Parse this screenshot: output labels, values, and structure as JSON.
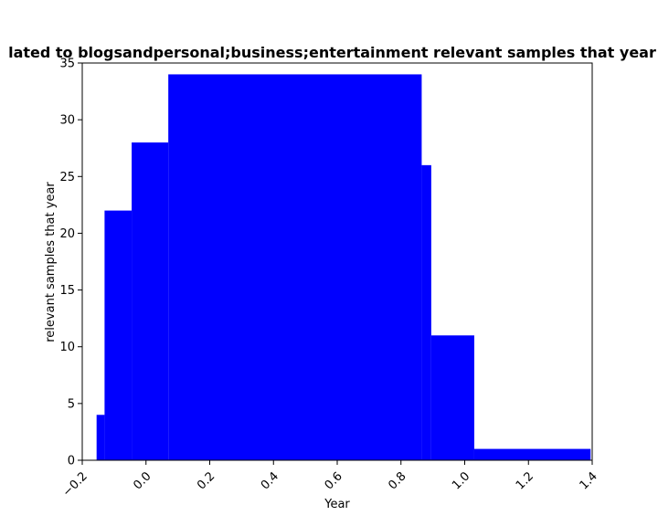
{
  "chart_data": {
    "type": "bar",
    "title": "lated to blogsandpersonal;business;entertainment relevant samples that year i",
    "xlabel": "Year",
    "ylabel": "relevant samples that year",
    "xlim": [
      -0.2,
      1.4
    ],
    "ylim": [
      0,
      35
    ],
    "xticks": [
      -0.2,
      0.0,
      0.2,
      0.4,
      0.6,
      0.8,
      1.0,
      1.2,
      1.4
    ],
    "xtick_labels": [
      "−0.2",
      "0.0",
      "0.2",
      "0.4",
      "0.6",
      "0.8",
      "1.0",
      "1.2",
      "1.4"
    ],
    "yticks": [
      0,
      5,
      10,
      15,
      20,
      25,
      30,
      35
    ],
    "ytick_labels": [
      "0",
      "5",
      "10",
      "15",
      "20",
      "25",
      "30",
      "35"
    ],
    "bar_color": "#0000ff",
    "grid": false,
    "bars": [
      {
        "x0": -0.155,
        "x1": -0.13,
        "value": 4
      },
      {
        "x0": -0.13,
        "x1": -0.045,
        "value": 22
      },
      {
        "x0": -0.045,
        "x1": 0.07,
        "value": 28
      },
      {
        "x0": 0.07,
        "x1": 0.865,
        "value": 34
      },
      {
        "x0": 0.865,
        "x1": 0.895,
        "value": 26
      },
      {
        "x0": 0.895,
        "x1": 1.03,
        "value": 11
      },
      {
        "x0": 1.03,
        "x1": 1.395,
        "value": 1
      }
    ]
  }
}
